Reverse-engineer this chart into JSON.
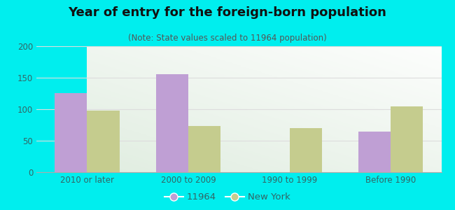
{
  "title": "Year of entry for the foreign-born population",
  "subtitle": "(Note: State values scaled to 11964 population)",
  "categories": [
    "2010 or later",
    "2000 to 2009",
    "1990 to 1999",
    "Before 1990"
  ],
  "series_11964": [
    126,
    156,
    0,
    65
  ],
  "series_newyork": [
    98,
    73,
    70,
    105
  ],
  "color_11964": "#bf9fd4",
  "color_newyork": "#c5cc8e",
  "ylim": [
    0,
    200
  ],
  "yticks": [
    0,
    50,
    100,
    150,
    200
  ],
  "bar_width": 0.32,
  "background_outer": "#00eeee",
  "legend_label_11964": "11964",
  "legend_label_newyork": "New York",
  "title_fontsize": 13,
  "subtitle_fontsize": 8.5,
  "tick_fontsize": 8.5,
  "legend_fontsize": 9.5,
  "grid_color": "#dddddd",
  "axis_text_color": "#336666"
}
